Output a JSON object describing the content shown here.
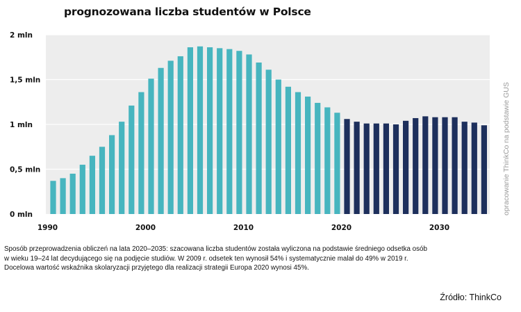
{
  "chart_data": {
    "type": "bar",
    "title": "prognozowana liczba studentów w Polsce",
    "xlabel": "",
    "ylabel": "",
    "ylim": [
      0,
      2000000
    ],
    "y_ticks": [
      {
        "value": 0,
        "label": "0 mln"
      },
      {
        "value": 500000,
        "label": "0,5 mln"
      },
      {
        "value": 1000000,
        "label": "1 mln"
      },
      {
        "value": 1500000,
        "label": "1,5 mln"
      },
      {
        "value": 2000000,
        "label": "2 mln"
      }
    ],
    "x_ticks": [
      1990,
      2000,
      2010,
      2020,
      2030
    ],
    "grid": true,
    "colors": {
      "historical": "#47b5bf",
      "forecast": "#1d2f5c",
      "plot_bg": "#ededed",
      "grid": "#ffffff"
    },
    "series": [
      {
        "x": [
          1990,
          1991,
          1992,
          1993,
          1994,
          1995,
          1996,
          1997,
          1998,
          1999,
          2000,
          2001,
          2002,
          2003,
          2004,
          2005,
          2006,
          2007,
          2008,
          2009,
          2010,
          2011,
          2012,
          2013,
          2014,
          2015,
          2016,
          2017,
          2018,
          2019
        ],
        "values": [
          370000,
          400000,
          450000,
          550000,
          650000,
          750000,
          880000,
          1030000,
          1210000,
          1360000,
          1510000,
          1630000,
          1710000,
          1760000,
          1860000,
          1870000,
          1860000,
          1850000,
          1840000,
          1820000,
          1780000,
          1690000,
          1610000,
          1500000,
          1420000,
          1360000,
          1310000,
          1240000,
          1190000,
          1130000
        ]
      },
      {
        "x": [
          2020,
          2021,
          2022,
          2023,
          2024,
          2025,
          2026,
          2027,
          2028,
          2029,
          2030,
          2031,
          2032,
          2033,
          2034
        ],
        "values": [
          1060000,
          1030000,
          1010000,
          1010000,
          1010000,
          1000000,
          1040000,
          1070000,
          1090000,
          1080000,
          1080000,
          1080000,
          1030000,
          1020000,
          990000
        ]
      }
    ]
  },
  "note": {
    "lines": [
      "Sposób przeprowadzenia obliczeń na lata 2020–2035: szacowana liczba studentów została wyliczona na podstawie średniego odsetka osób",
      "w wieku 19–24 lat decydującego się na podjęcie studiów. W 2009 r. odsetek ten wynosił 54% i systematycznie malał do 49% w 2019 r.",
      "Docelowa wartość wskaźnika skolaryzacji przyjętego dla realizacji strategii Europa 2020 wynosi 45%."
    ]
  },
  "side_credit": "opracowanie ThinkCo na podstawie GUS",
  "source": "Źródło: ThinkCo"
}
